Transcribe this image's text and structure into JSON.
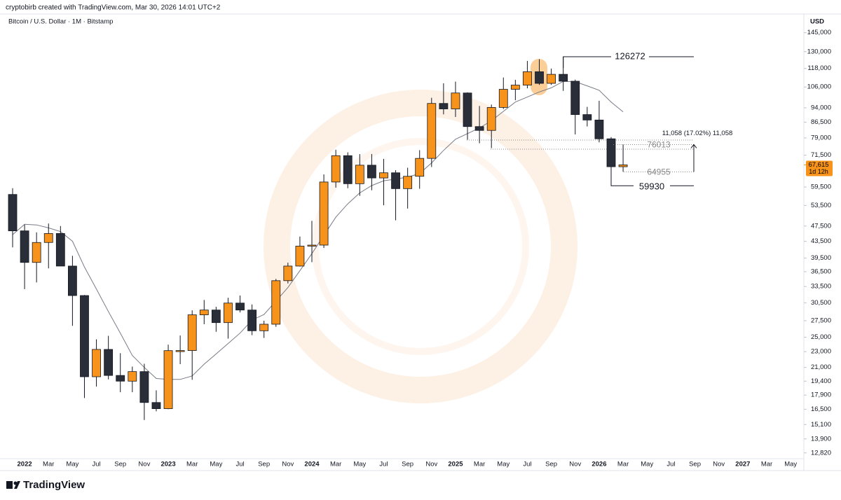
{
  "header": "cryptobirb created with TradingView.com, Mar 30, 2026 14:01 UTC+2",
  "brand": "TradingView",
  "chart_data": {
    "type": "candlestick",
    "title": "Bitcoin / U.S. Dollar · 1M · Bitstamp",
    "currency": "USD",
    "log_scale": true,
    "grid": false,
    "up_color": "#f7931a",
    "down_color": "#2a2e39",
    "categories": [
      null,
      "2022",
      null,
      "Mar",
      null,
      "May",
      null,
      "Jul",
      null,
      "Sep",
      null,
      "Nov",
      null,
      "2023",
      null,
      "Mar",
      null,
      "May",
      null,
      "Jul",
      null,
      "Sep",
      null,
      "Nov",
      null,
      "2024",
      null,
      "Mar",
      null,
      "May",
      null,
      "Jul",
      null,
      "Sep",
      null,
      "Nov",
      null,
      "2025",
      null,
      "Mar",
      null,
      "May",
      null,
      "Jul",
      null,
      "Sep",
      null,
      "Nov",
      null,
      "2026",
      null,
      "Mar",
      null,
      "May",
      null,
      "Jul",
      null,
      "Sep",
      null,
      "Nov",
      null,
      "2027",
      null,
      "Mar",
      null,
      "May",
      null
    ],
    "open": [
      57000,
      46200,
      38500,
      43200,
      45500,
      37700,
      31800,
      19900,
      23300,
      20050,
      19400,
      20500,
      17150,
      16550,
      23140,
      23150,
      28450,
      29250,
      27200,
      30450,
      29250,
      25950,
      26950,
      34650,
      37700,
      42300,
      42550,
      61250,
      71300,
      60650,
      67500,
      62700,
      64600,
      58950,
      63300,
      70200,
      96400,
      93400,
      102400,
      84350,
      82500,
      94200,
      104600,
      107150,
      115750,
      108250,
      114050,
      109600,
      90400,
      87600,
      78600,
      66900,
      null,
      null,
      null,
      null,
      null,
      null,
      null,
      null,
      null,
      null,
      null,
      null,
      null,
      null,
      null
    ],
    "high": [
      59100,
      47900,
      45800,
      48200,
      47500,
      40000,
      31900,
      24700,
      25200,
      22800,
      21100,
      21450,
      18400,
      23950,
      25250,
      29200,
      31000,
      29800,
      31400,
      31800,
      30200,
      27500,
      35000,
      38450,
      44700,
      48950,
      64000,
      73800,
      72700,
      71950,
      72000,
      70000,
      65600,
      66500,
      73600,
      99600,
      108300,
      109350,
      102800,
      95000,
      95800,
      111950,
      110500,
      123200,
      124450,
      117900,
      126272,
      110600,
      94500,
      97900,
      79400,
      76013,
      null,
      null,
      null,
      null,
      null,
      null,
      null,
      null,
      null,
      null,
      null,
      null,
      null,
      null,
      null
    ],
    "low": [
      42000,
      33000,
      34300,
      37200,
      37700,
      26700,
      17600,
      18800,
      19600,
      18200,
      18200,
      15500,
      16300,
      16500,
      21400,
      19550,
      26950,
      25800,
      24800,
      28850,
      25300,
      24900,
      26550,
      34100,
      37600,
      38550,
      41850,
      59300,
      59100,
      56550,
      58400,
      53550,
      49100,
      52550,
      58900,
      66800,
      90500,
      89150,
      78200,
      76600,
      74500,
      93350,
      98200,
      105200,
      107300,
      107300,
      103650,
      80600,
      84400,
      77000,
      59930,
      64955,
      null,
      null,
      null,
      null,
      null,
      null,
      null,
      null,
      null,
      null,
      null,
      null,
      null,
      null,
      null
    ],
    "close": [
      46200,
      38500,
      43200,
      45500,
      37700,
      31800,
      19900,
      23300,
      20050,
      19400,
      20500,
      17150,
      16550,
      23140,
      23150,
      28450,
      29250,
      27200,
      30450,
      29250,
      25950,
      26950,
      34650,
      37700,
      42300,
      42550,
      61250,
      71300,
      60650,
      67500,
      62700,
      64600,
      58950,
      63300,
      70200,
      96400,
      93400,
      102400,
      84350,
      82500,
      94200,
      104600,
      107150,
      115750,
      108250,
      114050,
      109600,
      90400,
      87600,
      78600,
      66900,
      67615,
      null,
      null,
      null,
      null,
      null,
      null,
      null,
      null,
      null,
      null,
      null,
      null,
      null,
      null,
      null
    ],
    "ma": {
      "color": "#787b86",
      "values": [
        45200,
        48000,
        47800,
        47000,
        46000,
        43500,
        37500,
        33000,
        29000,
        25600,
        22500,
        21000,
        19700,
        19600,
        19600,
        20000,
        21400,
        22700,
        24100,
        25600,
        27600,
        28500,
        30800,
        33300,
        36700,
        40500,
        45000,
        50000,
        54000,
        57500,
        60000,
        61700,
        62300,
        63000,
        64300,
        68400,
        73500,
        78400,
        81000,
        83700,
        87200,
        92100,
        97200,
        100000,
        103000,
        105500,
        109500,
        109300,
        106700,
        104000,
        97200,
        91800,
        null,
        null,
        null,
        null,
        null,
        null,
        null,
        null,
        null,
        null,
        null,
        null,
        null,
        null,
        null
      ]
    },
    "ylim": [
      12400,
      149000
    ],
    "yticks": [
      {
        "value": 145000,
        "label": "145,000"
      },
      {
        "value": 130000,
        "label": "130,000"
      },
      {
        "value": 118000,
        "label": "118,000"
      },
      {
        "value": 106000,
        "label": "106,000"
      },
      {
        "value": 94000,
        "label": "94,000"
      },
      {
        "value": 86500,
        "label": "86,500"
      },
      {
        "value": 79000,
        "label": "79,000"
      },
      {
        "value": 71500,
        "label": "71,500"
      },
      {
        "value": 59500,
        "label": "59,500"
      },
      {
        "value": 53500,
        "label": "53,500"
      },
      {
        "value": 47500,
        "label": "47,500"
      },
      {
        "value": 43500,
        "label": "43,500"
      },
      {
        "value": 39500,
        "label": "39,500"
      },
      {
        "value": 36500,
        "label": "36,500"
      },
      {
        "value": 33500,
        "label": "33,500"
      },
      {
        "value": 30500,
        "label": "30,500"
      },
      {
        "value": 27500,
        "label": "27,500"
      },
      {
        "value": 25000,
        "label": "25,000"
      },
      {
        "value": 23000,
        "label": "23,000"
      },
      {
        "value": 21000,
        "label": "21,000"
      },
      {
        "value": 19400,
        "label": "19,400"
      },
      {
        "value": 17900,
        "label": "17,900"
      },
      {
        "value": 16500,
        "label": "16,500"
      },
      {
        "value": 15100,
        "label": "15,100"
      },
      {
        "value": 13900,
        "label": "13,900"
      },
      {
        "value": 12820,
        "label": "12,820"
      }
    ],
    "last_price": {
      "value": 67615,
      "label": "67,615"
    },
    "countdown": "1d 12h",
    "annotations": {
      "high": 126272,
      "low": 59930,
      "range_top": 76013,
      "range_bottom": 64955,
      "measure": "11,058 (17.02%) 11,058"
    }
  }
}
